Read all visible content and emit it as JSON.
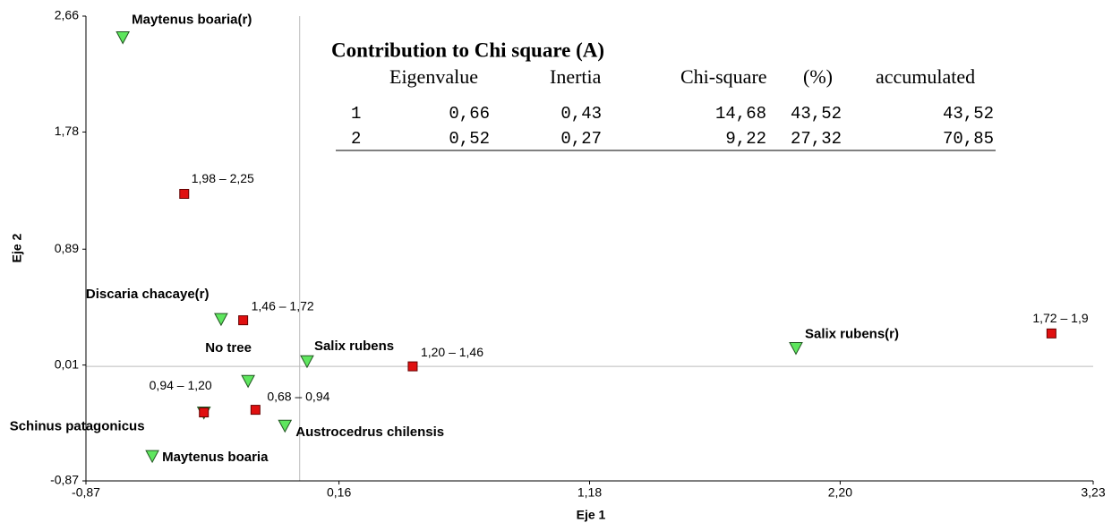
{
  "chart_data": {
    "type": "scatter",
    "x_label": "Eje 1",
    "y_label": "Eje 2",
    "xlim": [
      -0.87,
      3.23
    ],
    "ylim": [
      -0.87,
      2.66
    ],
    "xticks": [
      {
        "value": -0.87,
        "label": "-0,87"
      },
      {
        "value": 0.16,
        "label": "0,16"
      },
      {
        "value": 1.18,
        "label": "1,18"
      },
      {
        "value": 2.2,
        "label": "2,20"
      },
      {
        "value": 3.23,
        "label": "3,23"
      }
    ],
    "yticks": [
      {
        "value": -0.87,
        "label": "-0,87"
      },
      {
        "value": 0.01,
        "label": "0,01"
      },
      {
        "value": 0.89,
        "label": "0,89"
      },
      {
        "value": 1.78,
        "label": "1,78"
      },
      {
        "value": 2.66,
        "label": "2,66"
      }
    ],
    "series": [
      {
        "marker": "triangle",
        "color": "#5ee65e",
        "labels": [
          "Maytenus boaria(r)",
          "Discaria chacaye(r)",
          "No tree",
          "Salix rubens",
          "Austrocedrus chilensis",
          "Maytenus boaria",
          "Schinus patagonicus",
          "Salix rubens(r)"
        ],
        "x": [
          -0.72,
          -0.32,
          -0.21,
          0.03,
          -0.06,
          -0.6,
          -0.39,
          2.02
        ],
        "y": [
          2.5,
          0.36,
          -0.11,
          0.04,
          -0.45,
          -0.68,
          -0.35,
          0.14
        ]
      },
      {
        "marker": "square",
        "color": "#e01010",
        "labels": [
          "1,98 – 2,25",
          "1,46 – 1,72",
          "1,20 – 1,46",
          "0,94 – 1,20",
          "0,68 – 0,94",
          "1,72 – 1,9"
        ],
        "x": [
          -0.47,
          -0.23,
          0.46,
          -0.39,
          -0.18,
          3.06
        ],
        "y": [
          1.31,
          0.35,
          0.0,
          -0.35,
          -0.33,
          0.25
        ]
      }
    ]
  },
  "table": {
    "title": "Contribution to Chi square (A)",
    "headers": [
      "Eigenvalue",
      "Inertia",
      "Chi-square",
      "(%)",
      "accumulated"
    ],
    "rows": [
      [
        "1",
        "0,66",
        "0,43",
        "14,68",
        "43,52",
        "43,52"
      ],
      [
        "2",
        "0,52",
        "0,27",
        "9,22",
        "27,32",
        "70,85"
      ]
    ]
  }
}
